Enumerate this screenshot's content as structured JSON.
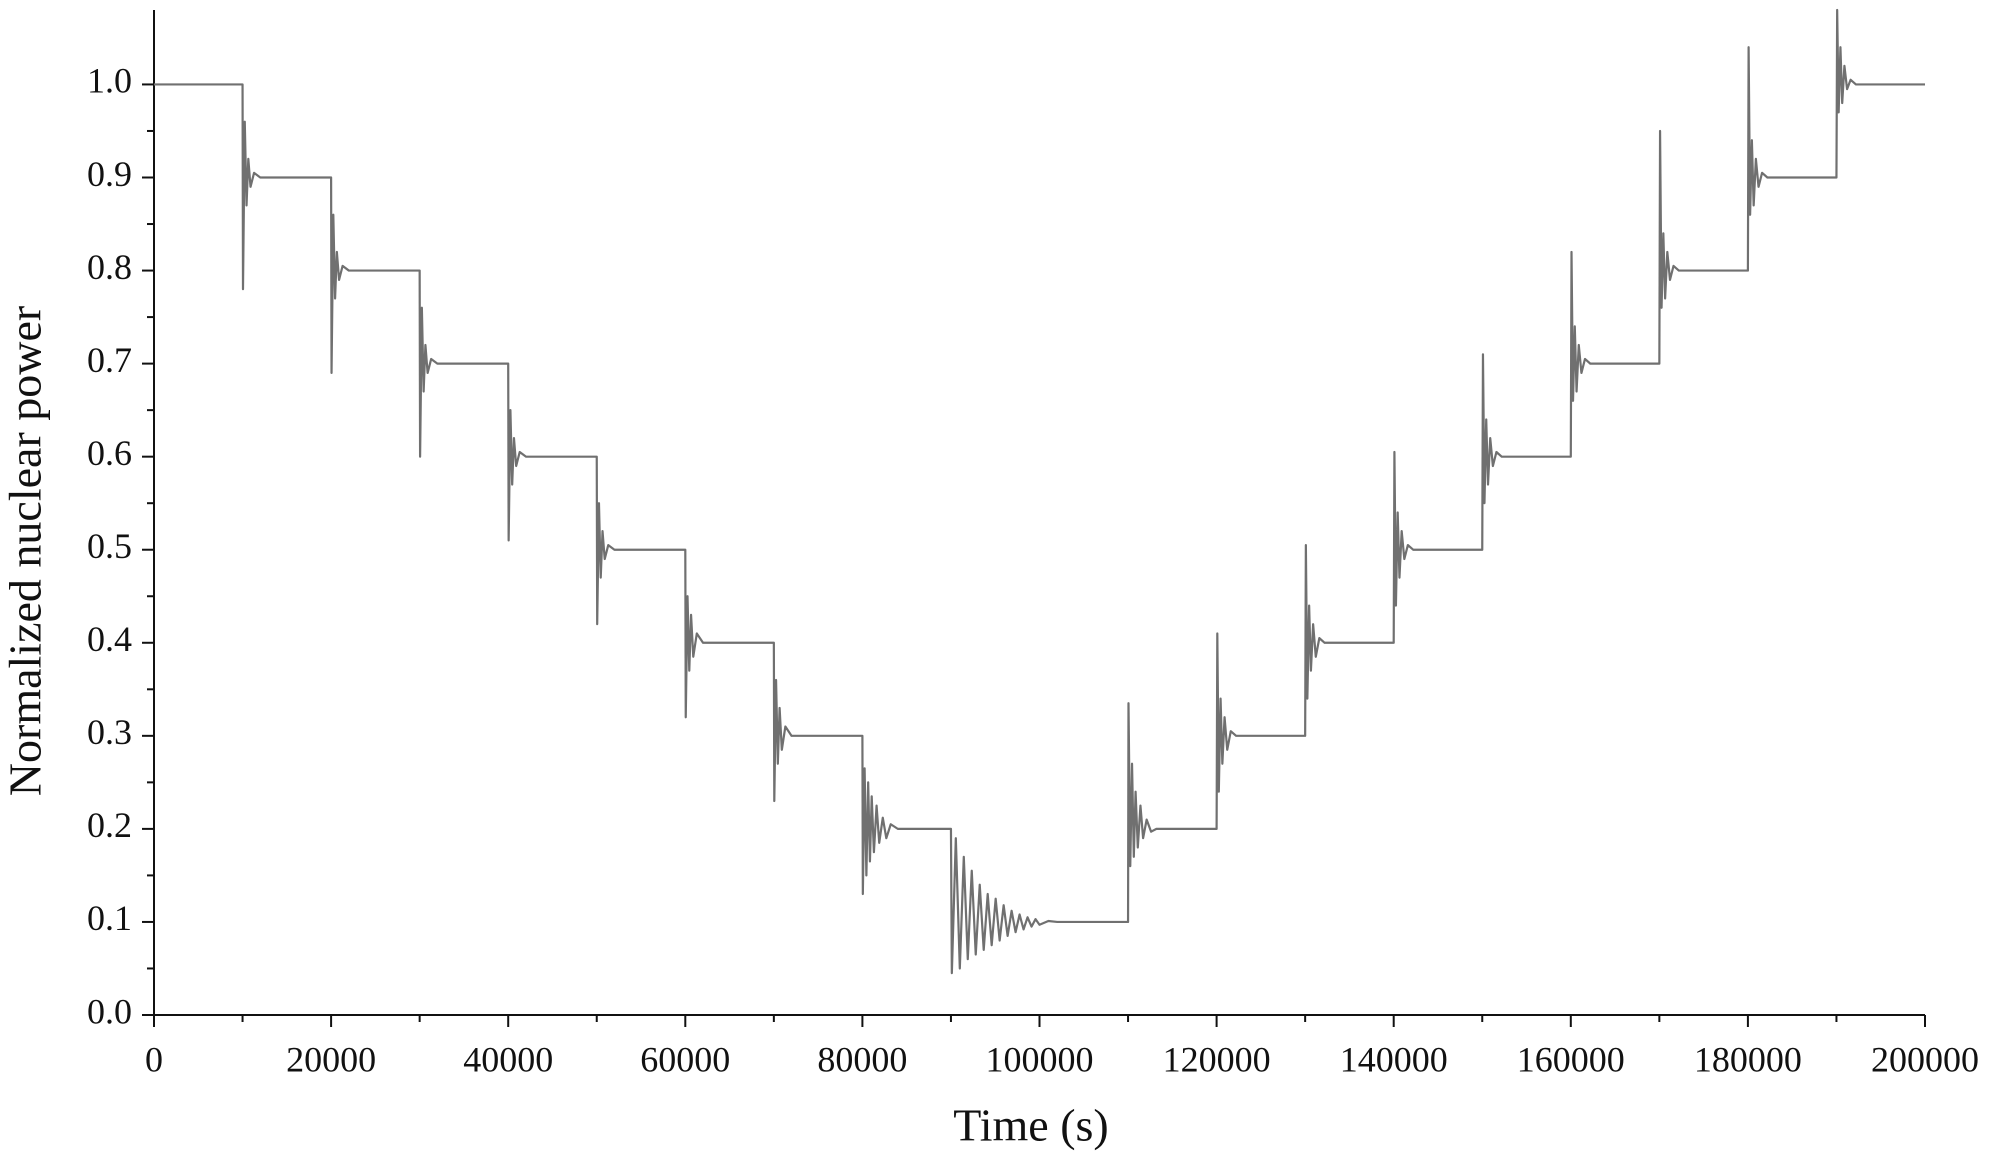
{
  "chart_data": {
    "type": "line",
    "xlabel": "Time (s)",
    "ylabel": "Normalized nuclear power",
    "color": "#707070",
    "xlim": [
      0,
      200000
    ],
    "ylim": [
      0,
      1.08
    ],
    "xticks": [
      0,
      20000,
      40000,
      60000,
      80000,
      100000,
      120000,
      140000,
      160000,
      180000,
      200000
    ],
    "yticks": [
      {
        "value": 0,
        "label": "0.0"
      },
      0.1,
      0.2,
      0.3,
      0.4,
      0.5,
      0.6,
      0.7,
      0.8,
      0.9,
      {
        "value": 1,
        "label": "1.0"
      }
    ],
    "x": [
      0,
      10000,
      10050,
      10250,
      10450,
      10650,
      10900,
      11300,
      12000,
      20000,
      20050,
      20250,
      20450,
      20650,
      20900,
      21300,
      22000,
      30000,
      30050,
      30250,
      30450,
      30650,
      30900,
      31300,
      32000,
      40000,
      40050,
      40250,
      40450,
      40650,
      40900,
      41300,
      42000,
      50000,
      50050,
      50250,
      50450,
      50650,
      50900,
      51300,
      52000,
      60000,
      60050,
      60250,
      60450,
      60650,
      60900,
      61300,
      62000,
      70000,
      70050,
      70250,
      70450,
      70650,
      70900,
      71300,
      72000,
      80000,
      80050,
      80250,
      80450,
      80650,
      80850,
      81050,
      81300,
      81600,
      81900,
      82300,
      82700,
      83200,
      84000,
      90000,
      90100,
      90550,
      91000,
      91450,
      91900,
      92350,
      92800,
      93250,
      93700,
      94150,
      94600,
      95050,
      95500,
      95950,
      96400,
      96850,
      97300,
      97750,
      98200,
      98650,
      99100,
      99550,
      100000,
      101000,
      102000,
      110000,
      110050,
      110250,
      110450,
      110650,
      110850,
      111100,
      111400,
      111700,
      112100,
      112600,
      113200,
      120000,
      120080,
      120250,
      120450,
      120650,
      120900,
      121200,
      121600,
      122200,
      130000,
      130080,
      130250,
      130450,
      130650,
      130900,
      131200,
      131600,
      132200,
      140000,
      140080,
      140250,
      140450,
      140650,
      140900,
      141200,
      141600,
      142200,
      150000,
      150080,
      150250,
      150450,
      150650,
      150900,
      151200,
      151600,
      152200,
      160000,
      160080,
      160250,
      160450,
      160650,
      160900,
      161200,
      161600,
      162200,
      170000,
      170080,
      170250,
      170450,
      170650,
      170900,
      171200,
      171600,
      172200,
      180000,
      180080,
      180250,
      180450,
      180650,
      180900,
      181200,
      181600,
      182200,
      190000,
      190080,
      190250,
      190450,
      190650,
      190900,
      191200,
      191600,
      192200,
      200000
    ],
    "values": [
      1.0,
      1.0,
      0.78,
      0.96,
      0.87,
      0.92,
      0.89,
      0.905,
      0.9,
      0.9,
      0.69,
      0.86,
      0.77,
      0.82,
      0.79,
      0.805,
      0.8,
      0.8,
      0.6,
      0.76,
      0.67,
      0.72,
      0.69,
      0.705,
      0.7,
      0.7,
      0.51,
      0.65,
      0.57,
      0.62,
      0.59,
      0.605,
      0.6,
      0.6,
      0.42,
      0.55,
      0.47,
      0.52,
      0.49,
      0.505,
      0.5,
      0.5,
      0.32,
      0.45,
      0.37,
      0.43,
      0.385,
      0.41,
      0.4,
      0.4,
      0.23,
      0.36,
      0.27,
      0.33,
      0.285,
      0.31,
      0.3,
      0.3,
      0.13,
      0.265,
      0.15,
      0.25,
      0.165,
      0.235,
      0.175,
      0.225,
      0.185,
      0.212,
      0.19,
      0.205,
      0.2,
      0.2,
      0.045,
      0.19,
      0.05,
      0.17,
      0.06,
      0.155,
      0.065,
      0.14,
      0.07,
      0.13,
      0.075,
      0.125,
      0.08,
      0.118,
      0.085,
      0.112,
      0.089,
      0.108,
      0.092,
      0.105,
      0.095,
      0.103,
      0.097,
      0.101,
      0.1,
      0.1,
      0.335,
      0.16,
      0.27,
      0.17,
      0.24,
      0.18,
      0.225,
      0.19,
      0.21,
      0.197,
      0.2,
      0.2,
      0.41,
      0.24,
      0.34,
      0.27,
      0.32,
      0.285,
      0.305,
      0.3,
      0.3,
      0.505,
      0.34,
      0.44,
      0.37,
      0.42,
      0.385,
      0.405,
      0.4,
      0.4,
      0.605,
      0.44,
      0.54,
      0.47,
      0.52,
      0.49,
      0.505,
      0.5,
      0.5,
      0.71,
      0.55,
      0.64,
      0.57,
      0.62,
      0.59,
      0.605,
      0.6,
      0.6,
      0.82,
      0.66,
      0.74,
      0.67,
      0.72,
      0.69,
      0.705,
      0.7,
      0.7,
      0.95,
      0.76,
      0.84,
      0.77,
      0.82,
      0.79,
      0.805,
      0.8,
      0.8,
      1.04,
      0.86,
      0.94,
      0.87,
      0.92,
      0.89,
      0.905,
      0.9,
      0.9,
      1.08,
      0.97,
      1.04,
      0.98,
      1.02,
      0.995,
      1.005,
      1.0,
      1.0
    ]
  }
}
